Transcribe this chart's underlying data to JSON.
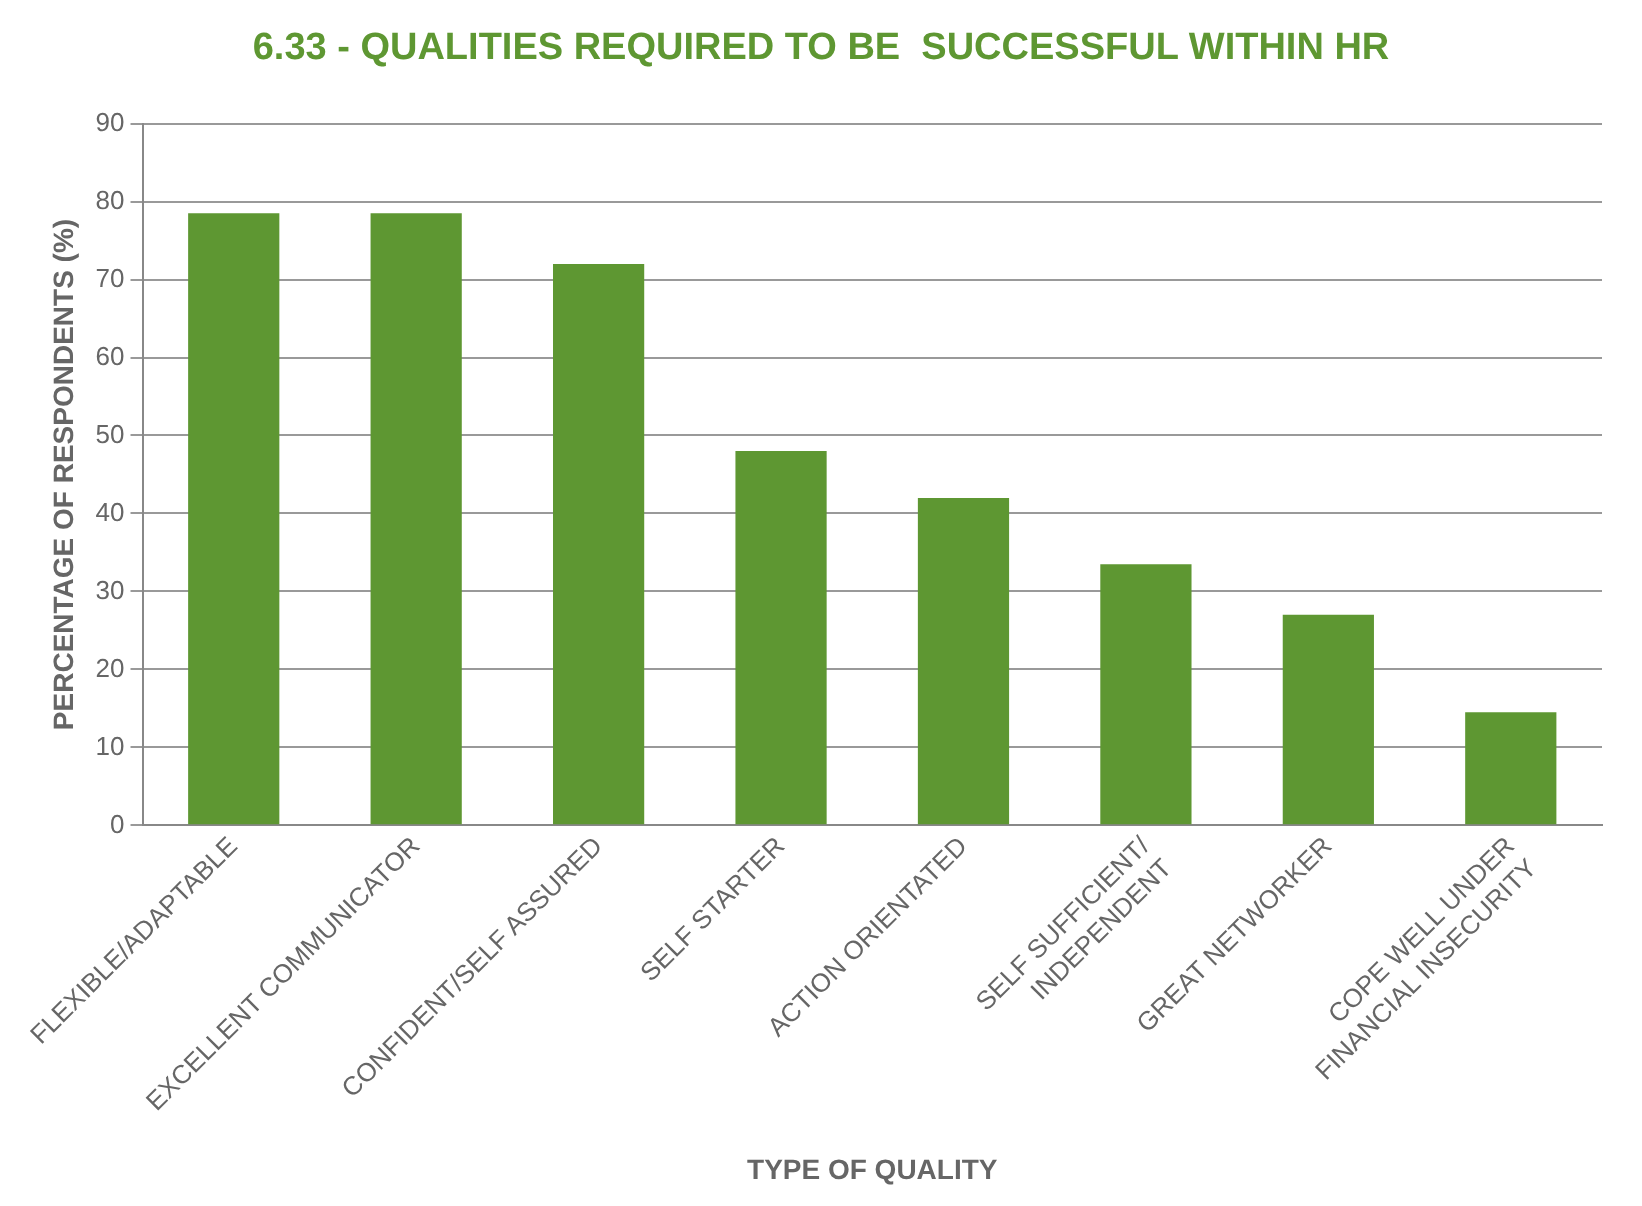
{
  "chart_data": {
    "type": "bar",
    "title": "6.33 - QUALITIES REQUIRED TO BE  SUCCESSFUL WITHIN HR",
    "xlabel": "TYPE OF QUALITY",
    "ylabel": "PERCENTAGE OF RESPONDENTS (%)",
    "categories": [
      "FLEXIBLE/ADAPTABLE",
      "EXCELLENT COMMUNICATOR",
      "CONFIDENT/SELF ASSURED",
      "SELF STARTER",
      "ACTION ORIENTATED",
      "SELF SUFFICIENT/\nINDEPENDENT",
      "GREAT NETWORKER",
      "COPE WELL UNDER\nFINANCIAL INSECURITY"
    ],
    "values": [
      78.5,
      78.5,
      72,
      48,
      42,
      33.5,
      27,
      14.5
    ],
    "color": "#5e9732",
    "ylim": [
      0,
      90
    ],
    "yticks": [
      0,
      10,
      20,
      30,
      40,
      50,
      60,
      70,
      80,
      90
    ],
    "grid": "y",
    "legend": false
  }
}
